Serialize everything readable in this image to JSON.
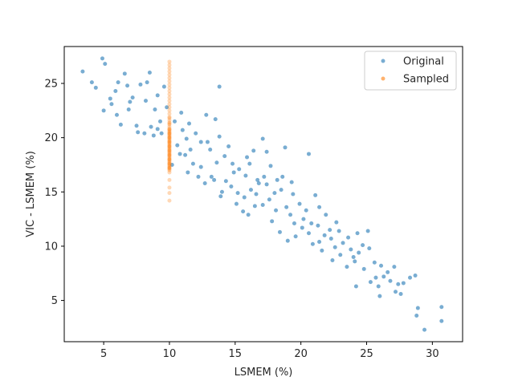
{
  "chart_data": {
    "type": "scatter",
    "title": "",
    "xlabel": "LSMEM (%)",
    "ylabel": "VIC - LSMEM (%)",
    "xlim": [
      2.0,
      32.3
    ],
    "ylim": [
      1.2,
      28.4
    ],
    "xticks": [
      5,
      10,
      15,
      20,
      25,
      30
    ],
    "yticks": [
      5,
      10,
      15,
      20,
      25
    ],
    "grid": false,
    "legend_position": "top-right",
    "series": [
      {
        "name": "Original",
        "color": "#1f77b4",
        "alpha": 0.6,
        "points": [
          [
            3.4,
            26.1
          ],
          [
            4.9,
            27.3
          ],
          [
            5.1,
            26.8
          ],
          [
            4.1,
            25.1
          ],
          [
            4.4,
            24.6
          ],
          [
            5.0,
            22.5
          ],
          [
            5.5,
            23.6
          ],
          [
            5.9,
            24.3
          ],
          [
            6.1,
            25.1
          ],
          [
            6.6,
            25.9
          ],
          [
            6.8,
            24.8
          ],
          [
            7.2,
            23.7
          ],
          [
            7.8,
            24.9
          ],
          [
            8.3,
            25.1
          ],
          [
            8.5,
            26.0
          ],
          [
            9.6,
            24.7
          ],
          [
            8.9,
            22.6
          ],
          [
            9.3,
            21.5
          ],
          [
            6.3,
            21.2
          ],
          [
            6.9,
            22.6
          ],
          [
            7.5,
            21.1
          ],
          [
            8.1,
            20.4
          ],
          [
            8.8,
            20.2
          ],
          [
            9.4,
            20.4
          ],
          [
            10.4,
            21.5
          ],
          [
            10.9,
            22.3
          ],
          [
            11.5,
            21.3
          ],
          [
            12.0,
            20.4
          ],
          [
            12.4,
            19.6
          ],
          [
            13.1,
            18.9
          ],
          [
            13.8,
            20.1
          ],
          [
            14.5,
            19.2
          ],
          [
            11.6,
            18.9
          ],
          [
            11.2,
            18.4
          ],
          [
            11.8,
            17.6
          ],
          [
            12.4,
            17.3
          ],
          [
            13.2,
            16.4
          ],
          [
            13.6,
            17.7
          ],
          [
            14.2,
            18.3
          ],
          [
            14.8,
            17.6
          ],
          [
            15.3,
            17.1
          ],
          [
            15.8,
            16.5
          ],
          [
            16.1,
            17.6
          ],
          [
            16.7,
            16.1
          ],
          [
            14.3,
            16.0
          ],
          [
            14.7,
            15.5
          ],
          [
            15.2,
            14.9
          ],
          [
            15.7,
            14.5
          ],
          [
            16.2,
            15.2
          ],
          [
            16.8,
            15.8
          ],
          [
            17.2,
            16.4
          ],
          [
            17.7,
            17.4
          ],
          [
            18.2,
            16.1
          ],
          [
            18.5,
            15.2
          ],
          [
            17.6,
            14.3
          ],
          [
            17.1,
            13.8
          ],
          [
            16.5,
            13.7
          ],
          [
            18.1,
            13.3
          ],
          [
            18.9,
            13.6
          ],
          [
            19.4,
            14.8
          ],
          [
            19.9,
            13.9
          ],
          [
            20.4,
            13.3
          ],
          [
            21.1,
            14.7
          ],
          [
            21.4,
            13.6
          ],
          [
            19.5,
            12.1
          ],
          [
            20.1,
            11.7
          ],
          [
            20.6,
            11.2
          ],
          [
            21.3,
            11.9
          ],
          [
            21.8,
            11.0
          ],
          [
            22.3,
            10.7
          ],
          [
            20.9,
            10.2
          ],
          [
            21.6,
            9.6
          ],
          [
            22.6,
            9.9
          ],
          [
            23.2,
            10.3
          ],
          [
            23.8,
            9.7
          ],
          [
            24.4,
            9.4
          ],
          [
            24.7,
            10.1
          ],
          [
            25.2,
            9.8
          ],
          [
            24.1,
            8.6
          ],
          [
            23.5,
            8.1
          ],
          [
            24.8,
            7.9
          ],
          [
            25.6,
            8.5
          ],
          [
            26.1,
            8.2
          ],
          [
            26.6,
            7.6
          ],
          [
            27.1,
            8.1
          ],
          [
            26.3,
            7.2
          ],
          [
            25.3,
            6.7
          ],
          [
            25.9,
            6.3
          ],
          [
            26.8,
            6.8
          ],
          [
            27.4,
            6.5
          ],
          [
            27.8,
            6.6
          ],
          [
            28.3,
            7.1
          ],
          [
            28.7,
            7.3
          ],
          [
            26.0,
            5.4
          ],
          [
            27.2,
            5.8
          ],
          [
            28.9,
            4.3
          ],
          [
            28.8,
            3.6
          ],
          [
            30.7,
            4.4
          ],
          [
            30.7,
            3.1
          ],
          [
            29.4,
            2.3
          ],
          [
            22.9,
            11.4
          ],
          [
            23.6,
            10.8
          ],
          [
            24.3,
            11.2
          ],
          [
            25.1,
            11.4
          ],
          [
            20.6,
            18.5
          ],
          [
            18.6,
            16.4
          ],
          [
            17.4,
            18.7
          ],
          [
            19.3,
            15.9
          ],
          [
            13.8,
            24.7
          ],
          [
            12.8,
            22.1
          ],
          [
            13.5,
            21.7
          ],
          [
            9.1,
            23.9
          ],
          [
            8.2,
            23.4
          ],
          [
            10.8,
            18.5
          ],
          [
            11.3,
            19.9
          ],
          [
            12.9,
            19.6
          ],
          [
            14.0,
            15.0
          ],
          [
            15.6,
            13.2
          ],
          [
            16.0,
            12.9
          ],
          [
            17.8,
            12.3
          ],
          [
            18.4,
            11.3
          ],
          [
            19.0,
            10.5
          ],
          [
            19.6,
            10.9
          ],
          [
            20.2,
            12.5
          ],
          [
            21.9,
            12.9
          ],
          [
            22.7,
            12.2
          ],
          [
            12.2,
            16.4
          ],
          [
            13.4,
            16.1
          ],
          [
            14.9,
            16.8
          ],
          [
            15.9,
            18.2
          ],
          [
            16.4,
            18.8
          ],
          [
            17.1,
            19.9
          ],
          [
            18.8,
            19.1
          ],
          [
            11.0,
            20.7
          ],
          [
            10.6,
            19.3
          ],
          [
            9.8,
            22.8
          ],
          [
            7.0,
            23.3
          ],
          [
            6.0,
            22.1
          ],
          [
            5.6,
            23.1
          ],
          [
            7.6,
            20.5
          ],
          [
            8.6,
            21.0
          ],
          [
            9.1,
            20.8
          ],
          [
            10.2,
            17.5
          ],
          [
            11.4,
            16.8
          ],
          [
            12.7,
            15.8
          ],
          [
            13.9,
            14.6
          ],
          [
            15.1,
            13.9
          ],
          [
            16.6,
            14.8
          ],
          [
            17.4,
            15.7
          ],
          [
            18.0,
            14.9
          ],
          [
            19.2,
            12.9
          ],
          [
            20.8,
            12.1
          ],
          [
            22.2,
            11.5
          ],
          [
            21.4,
            10.4
          ],
          [
            23.0,
            9.2
          ],
          [
            24.0,
            9.0
          ],
          [
            25.7,
            7.1
          ],
          [
            27.6,
            5.6
          ],
          [
            24.2,
            6.3
          ],
          [
            22.4,
            8.7
          ]
        ]
      },
      {
        "name": "Sampled",
        "color": "#ff7f0e",
        "alpha": 0.3,
        "x_constant": 10.0,
        "y_values": [
          14.2,
          14.9,
          15.4,
          16.1,
          16.8,
          17.0,
          17.2,
          17.4,
          17.6,
          17.8,
          18.0,
          18.2,
          18.4,
          18.6,
          18.8,
          19.0,
          19.2,
          19.4,
          19.6,
          19.8,
          20.0,
          20.2,
          20.4,
          20.6,
          20.8,
          21.0,
          21.2,
          21.4,
          21.6,
          21.9,
          22.2,
          22.5,
          22.8,
          23.1,
          23.4,
          23.7,
          24.0,
          24.3,
          24.6,
          24.9,
          25.2,
          25.5,
          25.8,
          26.1,
          26.4,
          26.7,
          27.0,
          17.1,
          17.3,
          17.5,
          17.7,
          17.9,
          18.1,
          18.3,
          18.5,
          18.7,
          18.9,
          19.1,
          19.3,
          19.5,
          19.7,
          19.9,
          20.1,
          20.3,
          20.5,
          20.7,
          17.2,
          17.6,
          18.0,
          18.4,
          18.8,
          19.2,
          19.6,
          20.0,
          20.4,
          20.8,
          21.3,
          21.8
        ]
      }
    ]
  }
}
